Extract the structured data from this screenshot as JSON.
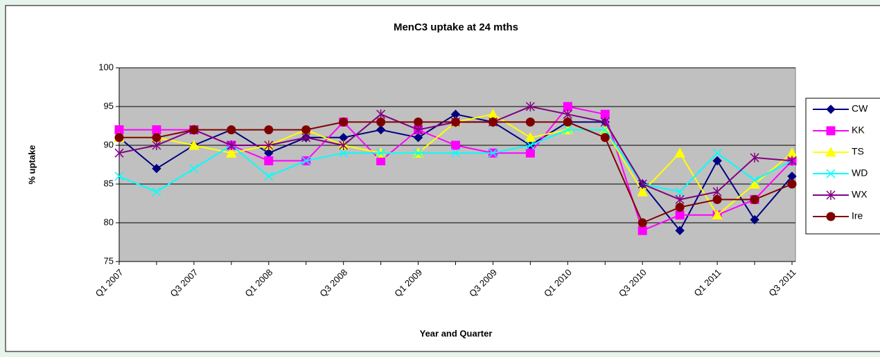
{
  "chart_data": {
    "type": "line",
    "title": "MenC3 uptake at 24 mths",
    "x_label": "Year and Quarter",
    "y_label": "% uptake",
    "categories": [
      "Q1 2007",
      null,
      "Q3 2007",
      null,
      "Q1 2008",
      null,
      "Q3 2008",
      null,
      "Q1 2009",
      null,
      "Q3 2009",
      null,
      "Q1 2010",
      null,
      "Q3 2010",
      null,
      "Q1 2011",
      null,
      "Q3 2011"
    ],
    "ylim": [
      75,
      100
    ],
    "yticks": [
      75,
      80,
      85,
      90,
      95,
      100
    ],
    "grid": true,
    "legend": "right",
    "series": [
      {
        "name": "CW",
        "color": "#000080",
        "marker": "diamond",
        "values": [
          91,
          87,
          90,
          92,
          89,
          91,
          91,
          92,
          91,
          94,
          93,
          90,
          93,
          93,
          85,
          79,
          88,
          80.4,
          86
        ]
      },
      {
        "name": "KK",
        "color": "#ff00ff",
        "marker": "square",
        "values": [
          92,
          92,
          92,
          90,
          88,
          88,
          93,
          88,
          92,
          90,
          89,
          89,
          95,
          94,
          79,
          81,
          81,
          83,
          88
        ]
      },
      {
        "name": "TS",
        "color": "#ffff00",
        "marker": "triangle",
        "values": [
          91,
          91,
          90,
          89,
          90,
          92,
          90,
          89,
          89,
          93,
          94,
          91,
          92,
          92,
          84,
          89,
          81,
          85,
          89
        ]
      },
      {
        "name": "WD",
        "color": "#00ffff",
        "marker": "x",
        "values": [
          86,
          84,
          87,
          90,
          86,
          88,
          89,
          89,
          89,
          89,
          89,
          90,
          92,
          92,
          85,
          84,
          89,
          85.5,
          88
        ]
      },
      {
        "name": "WX",
        "color": "#800080",
        "marker": "star",
        "values": [
          89,
          90,
          92,
          90,
          90,
          91,
          90,
          94,
          92,
          93,
          93,
          95,
          94,
          93,
          85,
          83,
          84,
          88.4,
          88
        ]
      },
      {
        "name": "Ire",
        "color": "#800000",
        "marker": "circle",
        "values": [
          91,
          91,
          92,
          92,
          92,
          92,
          93,
          93,
          93,
          93,
          93,
          93,
          93,
          91,
          80,
          82,
          83,
          83,
          85
        ]
      }
    ]
  }
}
